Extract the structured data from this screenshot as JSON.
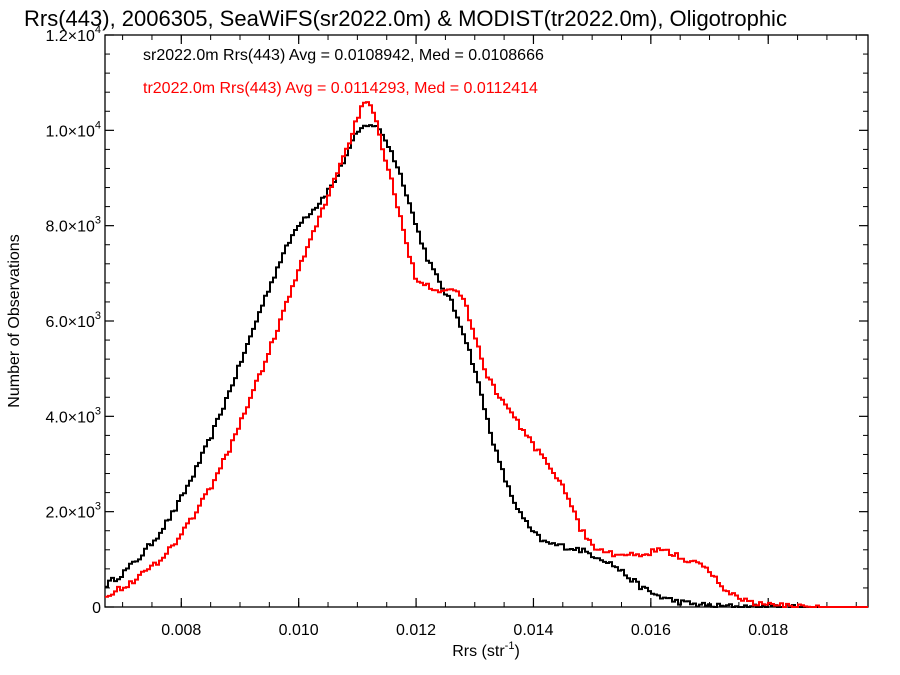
{
  "chart_data": {
    "type": "line",
    "title": "Rrs(443), 2006305, SeaWiFS(sr2022.0m) & MODIST(tr2022.0m), Oligotrophic",
    "xlabel": "Rrs (str",
    "xlabel_sup": "-1",
    "xlabel_end": ")",
    "ylabel": "Number of Observations",
    "xlim": [
      0.0067,
      0.0197
    ],
    "ylim": [
      0,
      12000
    ],
    "x_ticks": [
      {
        "value": 0.008,
        "label": "0.008"
      },
      {
        "value": 0.01,
        "label": "0.010"
      },
      {
        "value": 0.012,
        "label": "0.012"
      },
      {
        "value": 0.014,
        "label": "0.014"
      },
      {
        "value": 0.016,
        "label": "0.016"
      },
      {
        "value": 0.018,
        "label": "0.018"
      }
    ],
    "y_ticks": [
      {
        "value": 0,
        "mant": "0",
        "exp": ""
      },
      {
        "value": 2000,
        "mant": "2.0×10",
        "exp": "3"
      },
      {
        "value": 4000,
        "mant": "4.0×10",
        "exp": "3"
      },
      {
        "value": 6000,
        "mant": "6.0×10",
        "exp": "3"
      },
      {
        "value": 8000,
        "mant": "8.0×10",
        "exp": "3"
      },
      {
        "value": 10000,
        "mant": "1.0×10",
        "exp": "4"
      },
      {
        "value": 12000,
        "mant": "1.2×10",
        "exp": "4"
      }
    ],
    "legend": [
      {
        "text": "sr2022.0m Rrs(443) Avg = 0.0108942, Med = 0.0108666",
        "color": "#000000"
      },
      {
        "text": "tr2022.0m Rrs(443) Avg = 0.0114293, Med = 0.0112414",
        "color": "#ff0000"
      }
    ],
    "legend_position": "top-left",
    "series": [
      {
        "color": "#000000",
        "x": [
          0.0067,
          0.007,
          0.0073,
          0.0076,
          0.0079,
          0.0082,
          0.0085,
          0.0088,
          0.0091,
          0.0094,
          0.0097,
          0.01,
          0.0103,
          0.0106,
          0.0108,
          0.011,
          0.0112,
          0.0114,
          0.0116,
          0.0118,
          0.012,
          0.0122,
          0.0124,
          0.0126,
          0.0128,
          0.013,
          0.0132,
          0.0134,
          0.0136,
          0.0138,
          0.014,
          0.0142,
          0.0144,
          0.0146,
          0.0148,
          0.015,
          0.0152,
          0.0154,
          0.0156,
          0.0158,
          0.016,
          0.0162,
          0.0164,
          0.0166,
          0.0168,
          0.017,
          0.0172,
          0.0174,
          0.0176,
          0.0178,
          0.018,
          0.0185,
          0.019,
          0.0197
        ],
        "y": [
          450,
          700,
          1050,
          1500,
          2050,
          2750,
          3550,
          4450,
          5400,
          6400,
          7300,
          8050,
          8400,
          8900,
          9450,
          9950,
          10150,
          10000,
          9500,
          8850,
          8000,
          7300,
          6800,
          6400,
          5800,
          5000,
          4000,
          3100,
          2400,
          1900,
          1550,
          1350,
          1300,
          1250,
          1200,
          1100,
          1000,
          850,
          650,
          450,
          300,
          200,
          130,
          80,
          50,
          30,
          15,
          10,
          5,
          3,
          2,
          0,
          0,
          0
        ]
      },
      {
        "color": "#ff0000",
        "x": [
          0.0067,
          0.007,
          0.0073,
          0.0076,
          0.0079,
          0.0082,
          0.0085,
          0.0088,
          0.0091,
          0.0094,
          0.0097,
          0.01,
          0.0102,
          0.0104,
          0.0106,
          0.0108,
          0.011,
          0.0111,
          0.0112,
          0.0113,
          0.0114,
          0.0115,
          0.0116,
          0.0118,
          0.012,
          0.0122,
          0.0124,
          0.0126,
          0.0128,
          0.013,
          0.0132,
          0.0134,
          0.0136,
          0.0138,
          0.014,
          0.0142,
          0.0144,
          0.0146,
          0.0148,
          0.015,
          0.0152,
          0.0154,
          0.0156,
          0.0158,
          0.016,
          0.0162,
          0.0164,
          0.0166,
          0.0168,
          0.017,
          0.0172,
          0.0174,
          0.0176,
          0.0178,
          0.018,
          0.0185,
          0.019,
          0.0197
        ],
        "y": [
          250,
          400,
          650,
          950,
          1350,
          1900,
          2500,
          3250,
          4150,
          5050,
          6050,
          7050,
          7700,
          8300,
          8950,
          9550,
          10250,
          10550,
          10550,
          10250,
          9800,
          9300,
          8850,
          7800,
          6900,
          6750,
          6650,
          6700,
          6500,
          5700,
          4900,
          4450,
          4100,
          3750,
          3400,
          3050,
          2750,
          2300,
          1650,
          1300,
          1150,
          1100,
          1100,
          1050,
          1150,
          1200,
          1100,
          1000,
          900,
          750,
          450,
          250,
          150,
          80,
          40,
          15,
          0,
          0
        ]
      }
    ]
  }
}
